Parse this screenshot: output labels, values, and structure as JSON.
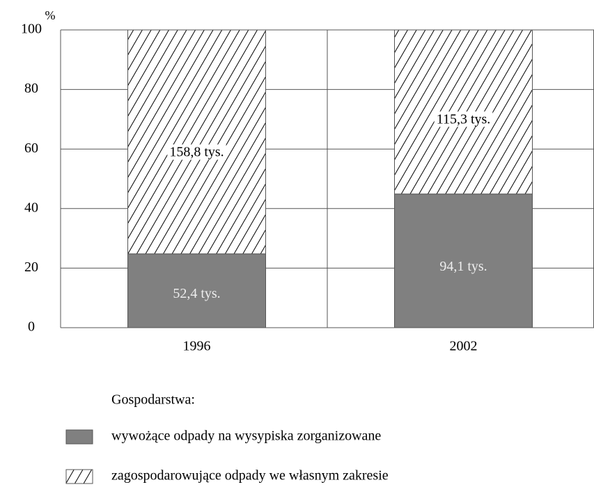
{
  "chart_data": {
    "type": "stacked_bar",
    "y_unit_label": "%",
    "categories": [
      "1996",
      "2002"
    ],
    "series": [
      {
        "name": "wywożące odpady na wysypiska zorganizowane",
        "color": "#808080",
        "fill": "solid",
        "values": [
          24.8,
          44.9
        ],
        "annotations": [
          "52,4 tys.",
          "94,1 tys."
        ]
      },
      {
        "name": "zagospodarowujące odpady we własnym zakresie",
        "color": "#000000",
        "fill": "hatch",
        "values": [
          75.2,
          55.1
        ],
        "annotations": [
          "158,8 tys.",
          "115,3 tys."
        ]
      }
    ],
    "ylim": [
      0,
      100
    ],
    "yticks": [
      0,
      20,
      40,
      60,
      80,
      100
    ],
    "grid": true,
    "legend_title": "Gospodarstwa:",
    "legend_position": "bottom"
  }
}
